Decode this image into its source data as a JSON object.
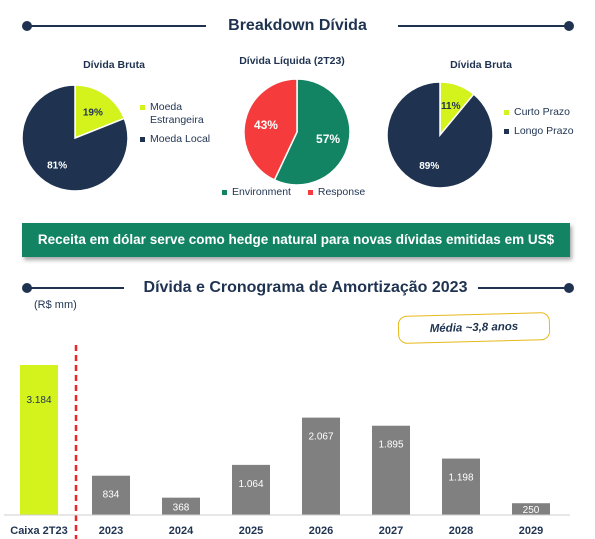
{
  "sections": {
    "top_title": "Breakdown Dívida",
    "bottom_title": "Dívida e Cronograma de Amortização 2023"
  },
  "banner": "Receita em dólar serve como hedge natural para novas dívidas emitidas em US$",
  "unit_label": "(R$ mm)",
  "badge": "Média ~3,8 anos",
  "colors": {
    "navy": "#1f3351",
    "lime": "#d4f21c",
    "teal": "#138463",
    "red": "#f53b3b",
    "gray": "#808080",
    "dashed": "#e8262c"
  },
  "chart_data": [
    {
      "type": "pie",
      "title": "Dívida Bruta",
      "slices": [
        {
          "label": "Moeda Estrangeira",
          "value": 19,
          "value_label": "19%",
          "color": "#d4f21c"
        },
        {
          "label": "Moeda Local",
          "value": 81,
          "value_label": "81%",
          "color": "#1f3351"
        }
      ],
      "legend_placement": "right"
    },
    {
      "type": "pie",
      "title": "Dívida Líquida (2T23)",
      "slices": [
        {
          "label": "Environment",
          "value": 57,
          "value_label": "57%",
          "color": "#138463"
        },
        {
          "label": "Response",
          "value": 43,
          "value_label": "43%",
          "color": "#f53b3b"
        }
      ],
      "legend_placement": "bottom"
    },
    {
      "type": "pie",
      "title": "Dívida Bruta",
      "slices": [
        {
          "label": "Curto Prazo",
          "value": 11,
          "value_label": "11%",
          "color": "#d4f21c"
        },
        {
          "label": "Longo Prazo",
          "value": 89,
          "value_label": "89%",
          "color": "#1f3351"
        }
      ],
      "legend_placement": "right"
    },
    {
      "type": "bar",
      "categories": [
        "Caixa 2T23",
        "2023",
        "2024",
        "2025",
        "2026",
        "2027",
        "2028",
        "2029"
      ],
      "values": [
        3184,
        834,
        368,
        1064,
        2067,
        1895,
        1198,
        250
      ],
      "value_labels": [
        "3.184",
        "834",
        "368",
        "1.064",
        "2.067",
        "1.895",
        "1.198",
        "250"
      ],
      "bar_colors": [
        "#d4f21c",
        "#808080",
        "#808080",
        "#808080",
        "#808080",
        "#808080",
        "#808080",
        "#808080"
      ],
      "ylabel": "(R$ mm)",
      "ylim": [
        0,
        3184
      ],
      "grid": false
    }
  ]
}
